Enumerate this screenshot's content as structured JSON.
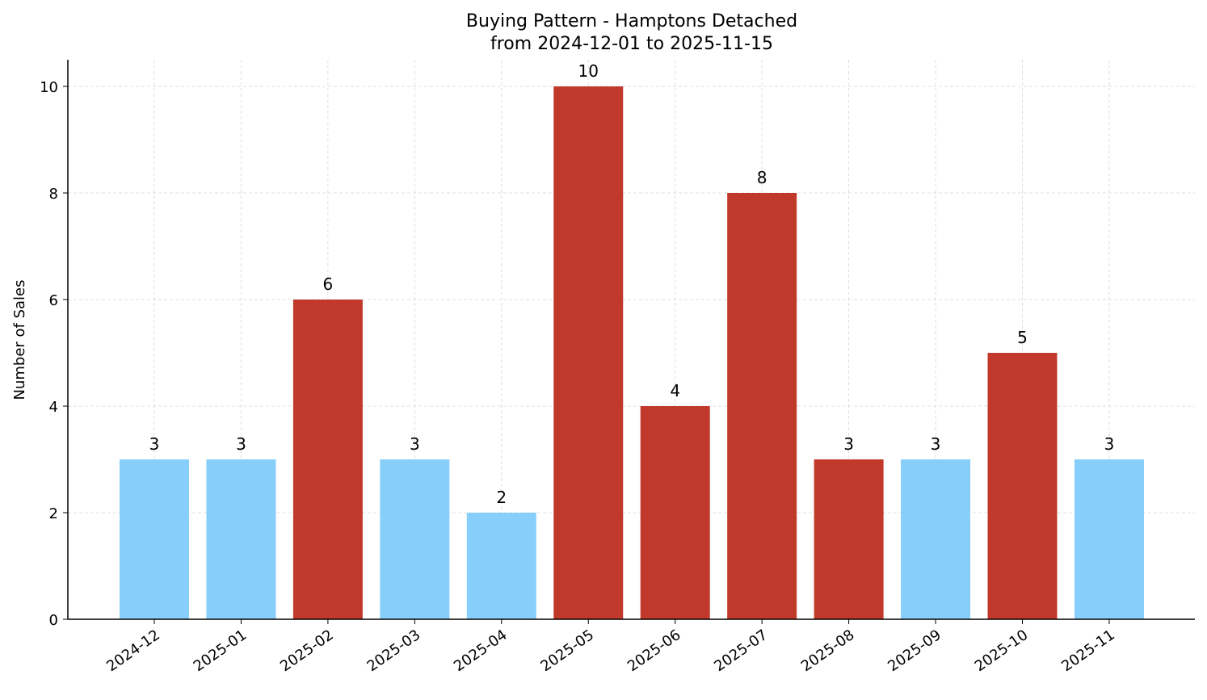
{
  "chart_data": {
    "type": "bar",
    "title": "Buying Pattern - Hamptons Detached",
    "subtitle": "from 2024-12-01 to 2025-11-15",
    "xlabel": "",
    "ylabel": "Number of Sales",
    "categories": [
      "2024-12",
      "2025-01",
      "2025-02",
      "2025-03",
      "2025-04",
      "2025-05",
      "2025-06",
      "2025-07",
      "2025-08",
      "2025-09",
      "2025-10",
      "2025-11"
    ],
    "values": [
      3,
      3,
      6,
      3,
      2,
      10,
      4,
      8,
      3,
      3,
      5,
      3
    ],
    "bar_colors": [
      "#87cefa",
      "#87cefa",
      "#c0392b",
      "#87cefa",
      "#87cefa",
      "#c0392b",
      "#c0392b",
      "#c0392b",
      "#c0392b",
      "#87cefa",
      "#c0392b",
      "#87cefa"
    ],
    "ylim": [
      0,
      10.5
    ],
    "yticks": [
      0,
      2,
      4,
      6,
      8,
      10
    ],
    "grid": true,
    "data_labels": true
  }
}
